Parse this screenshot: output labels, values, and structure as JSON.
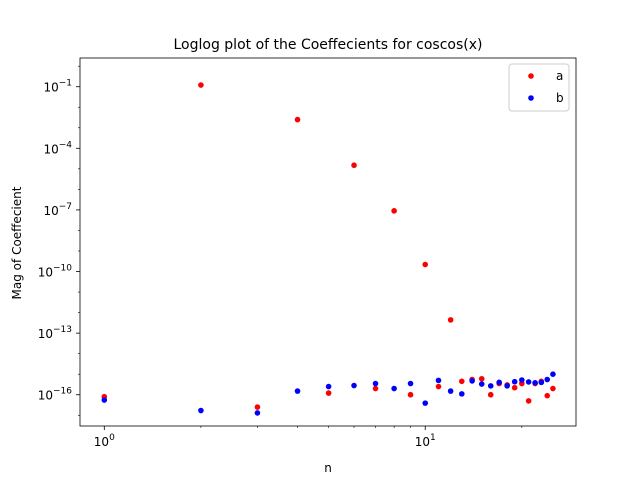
{
  "chart_data": {
    "type": "scatter",
    "title": "Loglog plot of the Coeffecients for coscos(x)",
    "xlabel": "n",
    "ylabel": "Mag of Coeffecient",
    "xscale": "log",
    "yscale": "log",
    "xlim": [
      0.84,
      29.5
    ],
    "ylim": [
      3e-18,
      2.5
    ],
    "x_ticks": [
      {
        "value": 1,
        "base": "10",
        "exp": "0"
      },
      {
        "value": 10,
        "base": "10",
        "exp": "1"
      }
    ],
    "y_ticks": [
      {
        "value": 1e-16,
        "base": "10",
        "exp": "−16"
      },
      {
        "value": 1e-13,
        "base": "10",
        "exp": "−13"
      },
      {
        "value": 1e-10,
        "base": "10",
        "exp": "−10"
      },
      {
        "value": 1e-07,
        "base": "10",
        "exp": "−7"
      },
      {
        "value": 0.0001,
        "base": "10",
        "exp": "−4"
      },
      {
        "value": 0.1,
        "base": "10",
        "exp": "−1"
      }
    ],
    "legend_position": "top-right",
    "series": [
      {
        "name": "a",
        "color": "#ff0000",
        "x": [
          1,
          2,
          3,
          4,
          5,
          6,
          7,
          8,
          9,
          10,
          11,
          12,
          13,
          14,
          15,
          16,
          17,
          18,
          19,
          20,
          21,
          22,
          23,
          24,
          25
        ],
        "y": [
          8e-17,
          0.12,
          2.5e-17,
          0.0025,
          1.2e-16,
          1.5e-05,
          2e-16,
          9e-08,
          1e-16,
          2.2e-10,
          2.5e-16,
          4.4e-13,
          4.5e-16,
          5.5e-16,
          6e-16,
          1e-16,
          3.5e-16,
          3e-16,
          2.2e-16,
          3.5e-16,
          5e-17,
          3.5e-16,
          4.5e-16,
          9e-17,
          2e-16
        ]
      },
      {
        "name": "b",
        "color": "#0000ff",
        "x": [
          1,
          2,
          3,
          4,
          5,
          6,
          7,
          8,
          9,
          10,
          11,
          12,
          13,
          14,
          15,
          16,
          17,
          18,
          19,
          20,
          21,
          22,
          23,
          24,
          25
        ],
        "y": [
          5.5e-17,
          1.7e-17,
          1.3e-17,
          1.5e-16,
          2.5e-16,
          2.8e-16,
          3.5e-16,
          2e-16,
          3.5e-16,
          3.9e-17,
          5e-16,
          1.5e-16,
          1.1e-16,
          4.7e-16,
          3.3e-16,
          2.7e-16,
          4e-16,
          2.7e-16,
          4.3e-16,
          5.2e-16,
          4.2e-16,
          3.8e-16,
          4e-16,
          5.5e-16,
          1e-15
        ]
      }
    ]
  }
}
